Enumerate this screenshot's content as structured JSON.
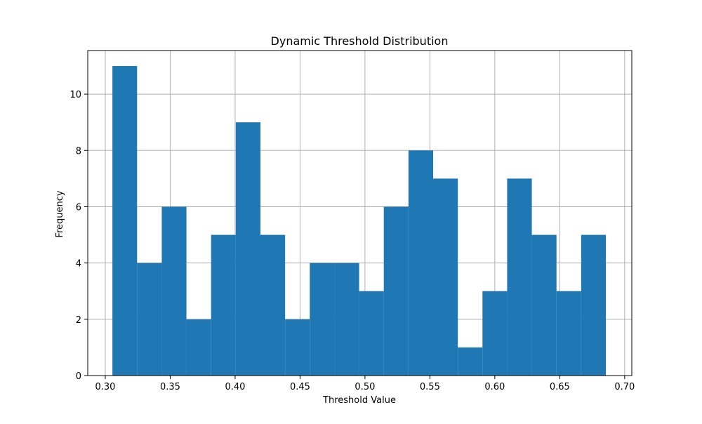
{
  "chart_data": {
    "type": "bar",
    "title": "Dynamic Threshold Distribution",
    "xlabel": "Threshold Value",
    "ylabel": "Frequency",
    "xlim": [
      0.2865,
      0.7055
    ],
    "ylim": [
      0,
      11.55
    ],
    "x_ticks": [
      0.3,
      0.35,
      0.4,
      0.45,
      0.5,
      0.55,
      0.6,
      0.65,
      0.7
    ],
    "x_tick_labels": [
      "0.30",
      "0.35",
      "0.40",
      "0.45",
      "0.50",
      "0.55",
      "0.60",
      "0.65",
      "0.70"
    ],
    "y_ticks": [
      0,
      2,
      4,
      6,
      8,
      10
    ],
    "y_tick_labels": [
      "0",
      "2",
      "4",
      "6",
      "8",
      "10"
    ],
    "grid": true,
    "bar_color": "#1f77b4",
    "grid_color": "#b0b0b0",
    "bin_start": 0.3055,
    "bin_width": 0.019,
    "values": [
      11,
      4,
      6,
      2,
      5,
      9,
      5,
      2,
      4,
      4,
      3,
      6,
      8,
      7,
      1,
      3,
      7,
      5,
      3,
      5
    ]
  }
}
